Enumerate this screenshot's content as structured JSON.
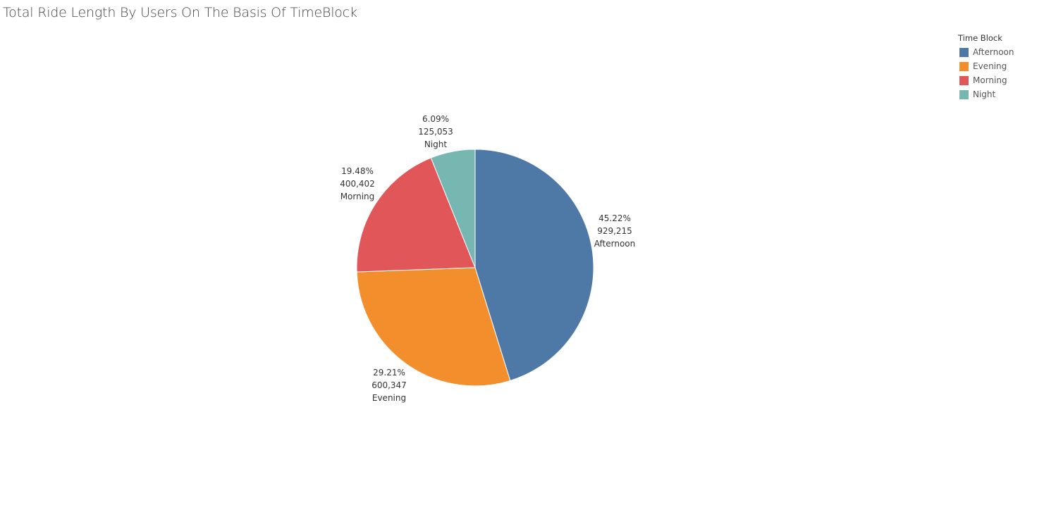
{
  "title": "Total Ride Length By Users On The Basis Of TimeBlock",
  "legend": {
    "title": "Time Block",
    "items": [
      {
        "label": "Afternoon",
        "color": "#4e79a7"
      },
      {
        "label": "Evening",
        "color": "#f28e2b"
      },
      {
        "label": "Morning",
        "color": "#e15759"
      },
      {
        "label": "Night",
        "color": "#76b7b2"
      }
    ]
  },
  "chart_data": {
    "type": "pie",
    "title": "Total Ride Length By Users On The Basis Of TimeBlock",
    "legend_title": "Time Block",
    "legend_position": "top-right",
    "categories": [
      "Afternoon",
      "Evening",
      "Morning",
      "Night"
    ],
    "values": [
      929215,
      600347,
      400402,
      125053
    ],
    "value_labels": [
      "929,215",
      "600,347",
      "400,402",
      "125,053"
    ],
    "percent_labels": [
      "45.22%",
      "29.21%",
      "19.48%",
      "6.09%"
    ],
    "colors": [
      "#4e79a7",
      "#f28e2b",
      "#e15759",
      "#76b7b2"
    ],
    "start_angle_deg": 0,
    "direction": "clockwise"
  }
}
